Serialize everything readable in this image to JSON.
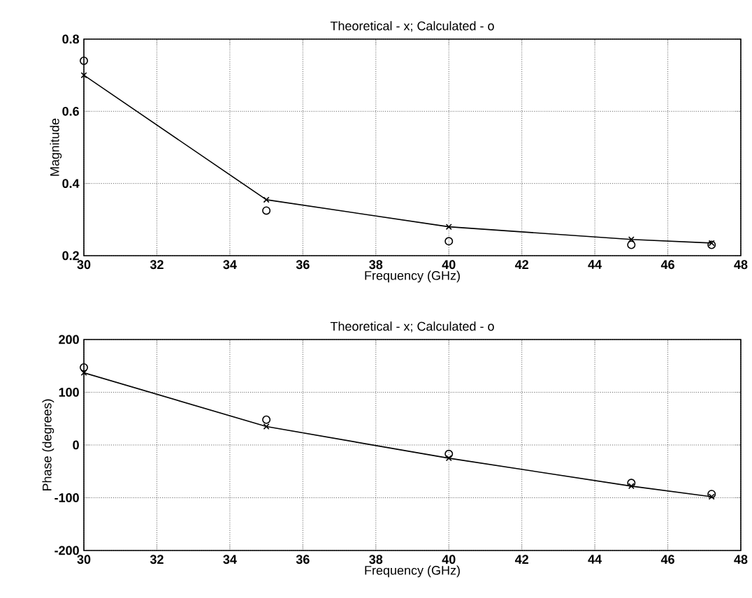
{
  "chart_data": [
    {
      "type": "line",
      "title": "Theoretical - x; Calculated - o",
      "xlabel": "Frequency (GHz)",
      "ylabel": "Magnitude",
      "x": [
        30,
        35,
        40,
        45,
        47.2
      ],
      "series": [
        {
          "color": "#000000",
          "marker": "cross",
          "line_style": "solid",
          "values": [
            0.7,
            0.355,
            0.28,
            0.245,
            0.235
          ]
        },
        {
          "type": "scatter",
          "color": "#000000",
          "marker": "circle",
          "values": [
            0.74,
            0.325,
            0.24,
            0.23,
            0.23
          ]
        }
      ],
      "xlim": [
        30,
        48
      ],
      "xticks": [
        30,
        32,
        34,
        36,
        38,
        40,
        42,
        44,
        46,
        48
      ],
      "ylim": [
        0.2,
        0.8
      ],
      "yticks": [
        0.2,
        0.4,
        0.6,
        0.8
      ],
      "grid": true
    },
    {
      "type": "line",
      "title": "Theoretical - x; Calculated - o",
      "xlabel": "Frequency (GHz)",
      "ylabel": "Phase (degrees)",
      "x": [
        30,
        35,
        40,
        45,
        47.2
      ],
      "series": [
        {
          "color": "#000000",
          "marker": "cross",
          "line_style": "solid",
          "values": [
            137,
            35,
            -25,
            -78,
            -98
          ]
        },
        {
          "type": "scatter",
          "color": "#000000",
          "marker": "circle",
          "values": [
            147,
            48,
            -17,
            -72,
            -93
          ]
        }
      ],
      "xlim": [
        30,
        48
      ],
      "xticks": [
        30,
        32,
        34,
        36,
        38,
        40,
        42,
        44,
        46,
        48
      ],
      "ylim": [
        -200,
        200
      ],
      "yticks": [
        -200,
        -100,
        0,
        100,
        200
      ],
      "grid": true
    }
  ]
}
